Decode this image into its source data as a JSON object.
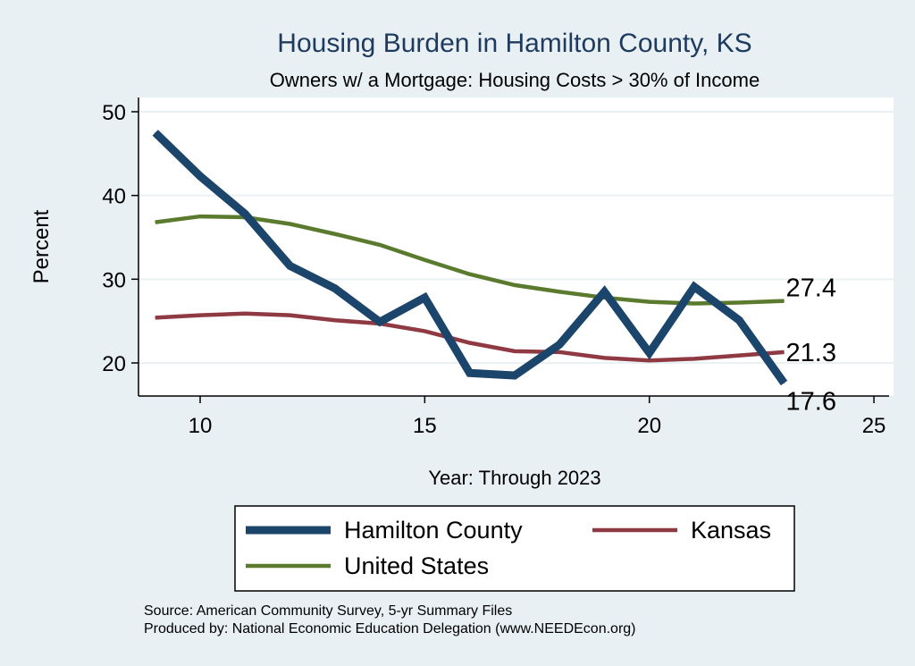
{
  "chart_data": {
    "type": "line",
    "title": "Housing Burden in Hamilton County, KS",
    "subtitle": "Owners w/ a Mortgage: Housing Costs > 30% of Income",
    "xlabel": "Year: Through 2023",
    "ylabel": "Percent",
    "xlim": [
      8.7,
      25.3
    ],
    "ylim": [
      16,
      52
    ],
    "xticks": [
      10,
      15,
      20,
      25
    ],
    "yticks": [
      20,
      30,
      40,
      50
    ],
    "grid": true,
    "legend_placement": "bottom",
    "x": [
      9,
      10,
      11,
      12,
      13,
      14,
      15,
      16,
      17,
      18,
      19,
      20,
      21,
      22,
      23
    ],
    "series": [
      {
        "name": "Hamilton County",
        "color": "#1c456b",
        "width": 9,
        "values": [
          47.5,
          42.3,
          37.8,
          31.6,
          28.9,
          24.9,
          27.8,
          18.8,
          18.5,
          22.2,
          28.5,
          21.2,
          29.1,
          25.1,
          17.6
        ],
        "end_label": "17.6"
      },
      {
        "name": "Kansas",
        "color": "#8f3a43",
        "width": 4.5,
        "values": [
          25.4,
          25.7,
          25.9,
          25.7,
          25.1,
          24.7,
          23.8,
          22.4,
          21.4,
          21.3,
          20.6,
          20.3,
          20.5,
          20.9,
          21.3
        ],
        "end_label": "21.3"
      },
      {
        "name": "United States",
        "color": "#5a7a2e",
        "width": 4.5,
        "values": [
          36.8,
          37.5,
          37.4,
          36.6,
          35.4,
          34.1,
          32.3,
          30.6,
          29.3,
          28.5,
          27.8,
          27.3,
          27.1,
          27.2,
          27.4
        ],
        "end_label": "27.4"
      }
    ],
    "notes": [
      "Source: American Community Survey, 5-yr Summary Files",
      "Produced by: National Economic Education Delegation (www.NEEDEcon.org)"
    ]
  }
}
